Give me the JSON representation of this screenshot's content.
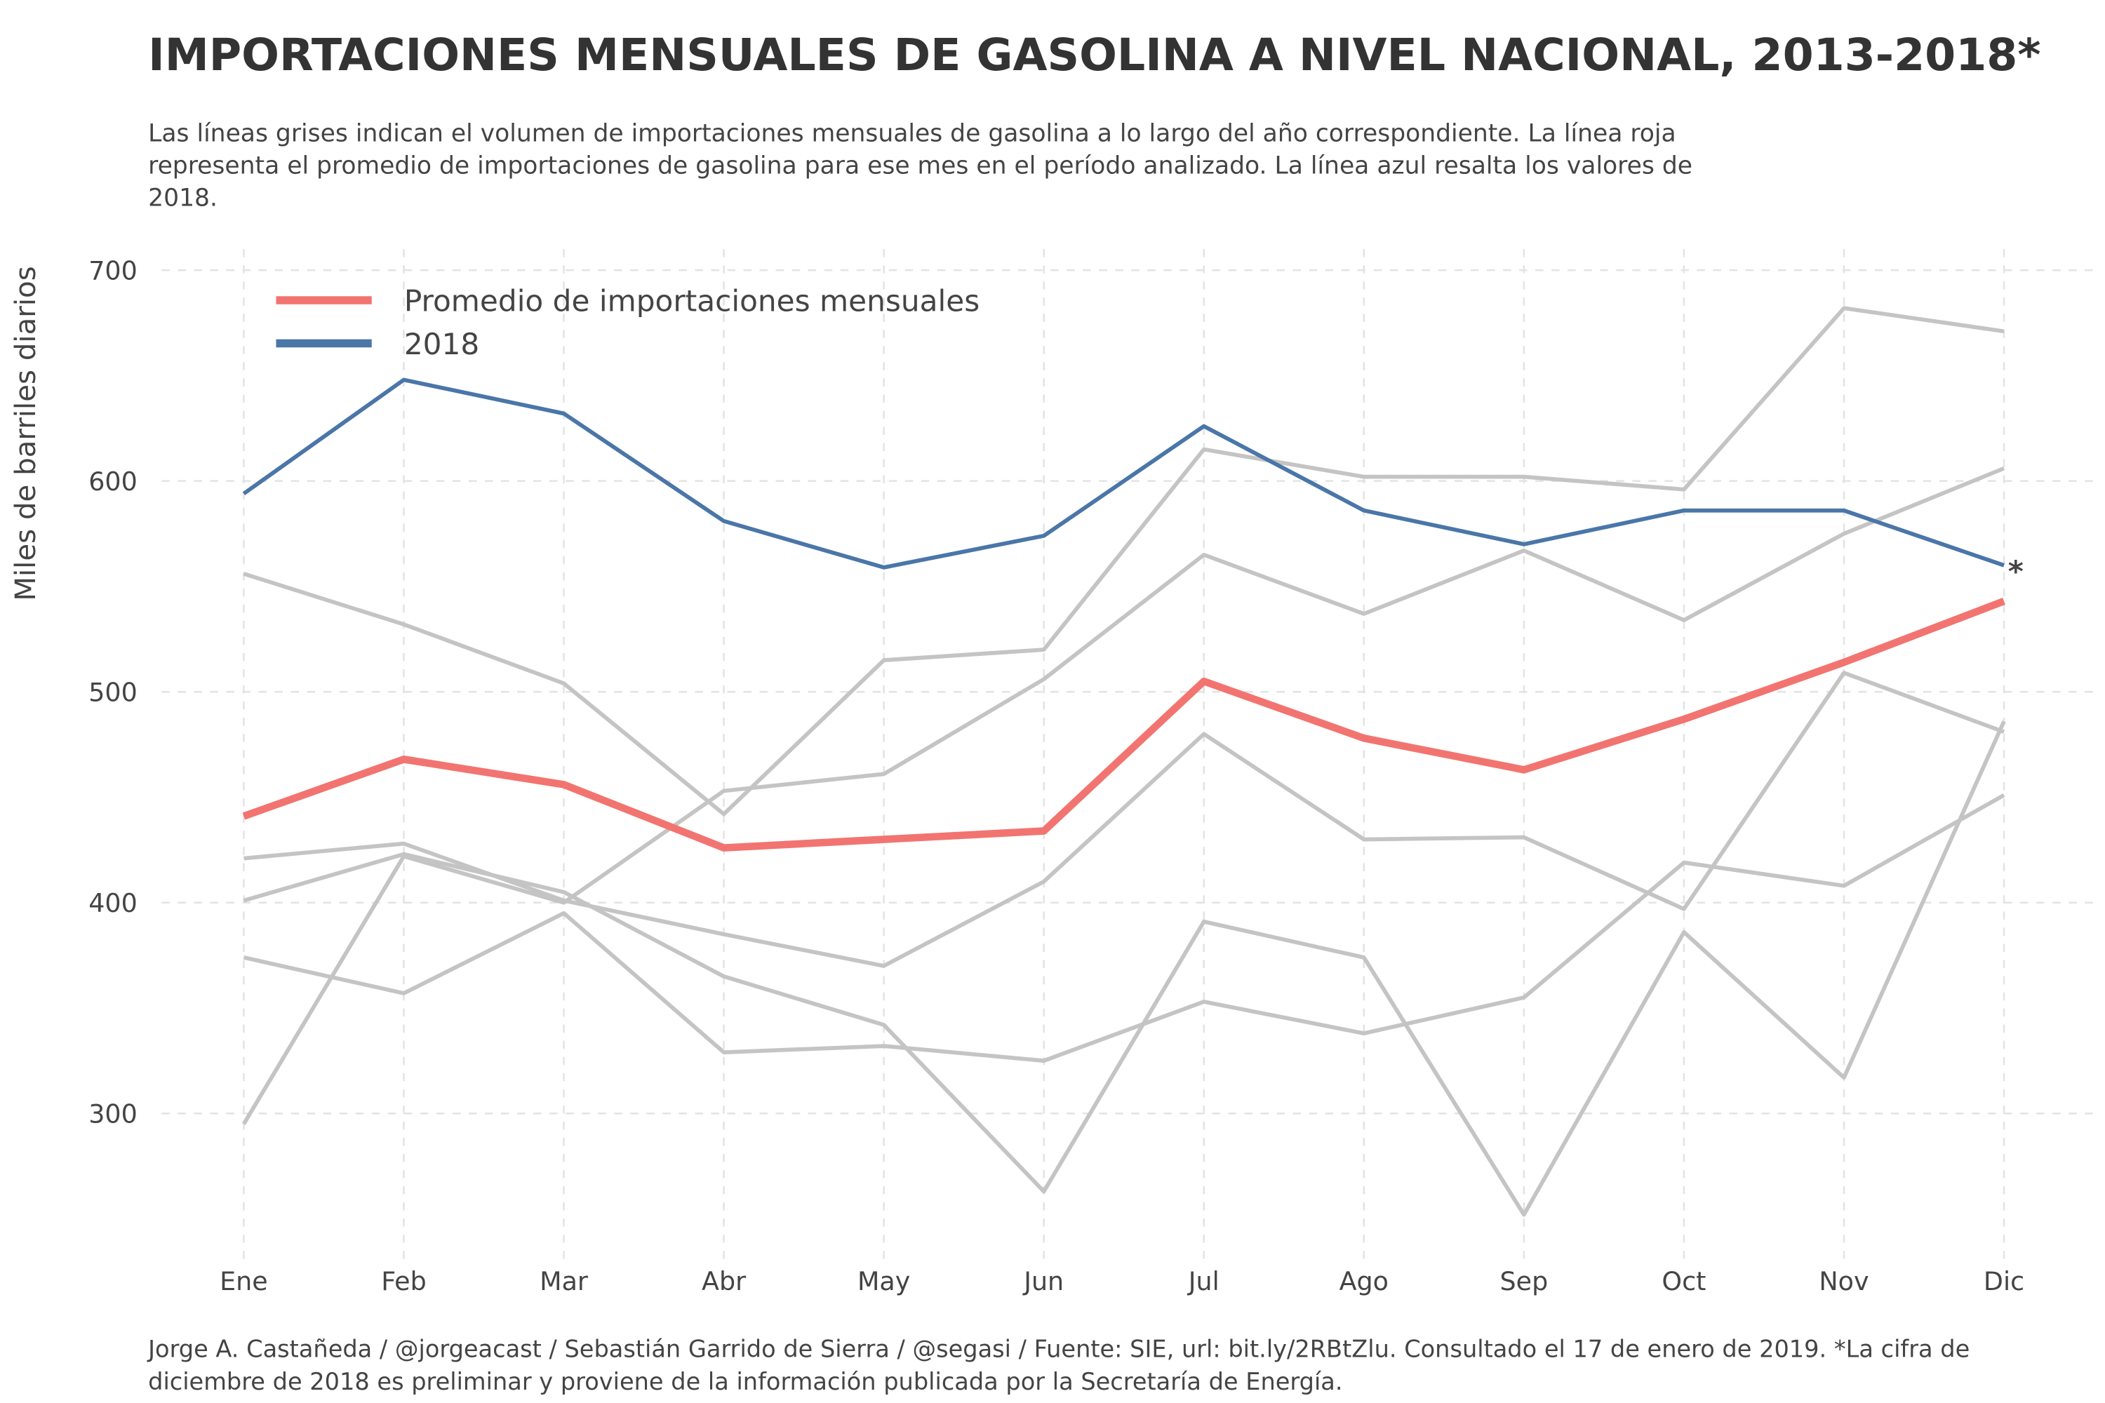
{
  "chart_data": {
    "type": "line",
    "title": "IMPORTACIONES MENSUALES DE GASOLINA A NIVEL NACIONAL, 2013-2018*",
    "subtitle": [
      "Las líneas grises indican el volumen de importaciones mensuales de gasolina a lo largo del año correspondiente. La línea roja",
      "representa el promedio de importaciones de gasolina para ese mes en el período analizado. La línea azul resalta los valores de",
      "2018."
    ],
    "caption": [
      "Jorge A. Castañeda / @jorgeacast / Sebastián Garrido de Sierra / @segasi / Fuente: SIE, url: bit.ly/2RBtZlu. Consultado el 17 de enero de 2019. *La cifra de",
      "diciembre de 2018 es preliminar y proviene de la información publicada por la Secretaría de Energía."
    ],
    "y_label": "Miles de barriles diarios",
    "annotation": "*",
    "categories": [
      "Ene",
      "Feb",
      "Mar",
      "Abr",
      "May",
      "Jun",
      "Jul",
      "Ago",
      "Sep",
      "Oct",
      "Nov",
      "Dic"
    ],
    "ylim": [
      231,
      710
    ],
    "yticks": [
      300,
      400,
      500,
      600,
      700
    ],
    "grid": true,
    "legend": "top-left",
    "series": [
      {
        "color": "#c4c4c4",
        "values": [
          556,
          532,
          504,
          442,
          515,
          520,
          615,
          602,
          602,
          596,
          682,
          671
        ]
      },
      {
        "color": "#c4c4c4",
        "values": [
          295,
          422,
          400,
          453,
          461,
          506,
          565,
          537,
          567,
          534,
          575,
          606
        ]
      },
      {
        "color": "#c4c4c4",
        "values": [
          421,
          428,
          401,
          385,
          370,
          410,
          480,
          430,
          431,
          397,
          509,
          481
        ]
      },
      {
        "color": "#c4c4c4",
        "values": [
          401,
          423,
          405,
          365,
          342,
          263,
          391,
          374,
          252,
          386,
          317,
          486
        ]
      },
      {
        "color": "#c4c4c4",
        "values": [
          374,
          357,
          395,
          329,
          332,
          325,
          353,
          338,
          355,
          419,
          408,
          451
        ]
      },
      {
        "name": "Promedio de importaciones mensuales",
        "color": "#f27470",
        "values": [
          441,
          468,
          456,
          426,
          430,
          434,
          505,
          478,
          463,
          487,
          514,
          543
        ]
      },
      {
        "name": "2018",
        "color": "#4a76a8",
        "values": [
          594,
          648,
          632,
          581,
          559,
          574,
          626,
          586,
          570,
          586,
          586,
          560
        ]
      }
    ]
  }
}
